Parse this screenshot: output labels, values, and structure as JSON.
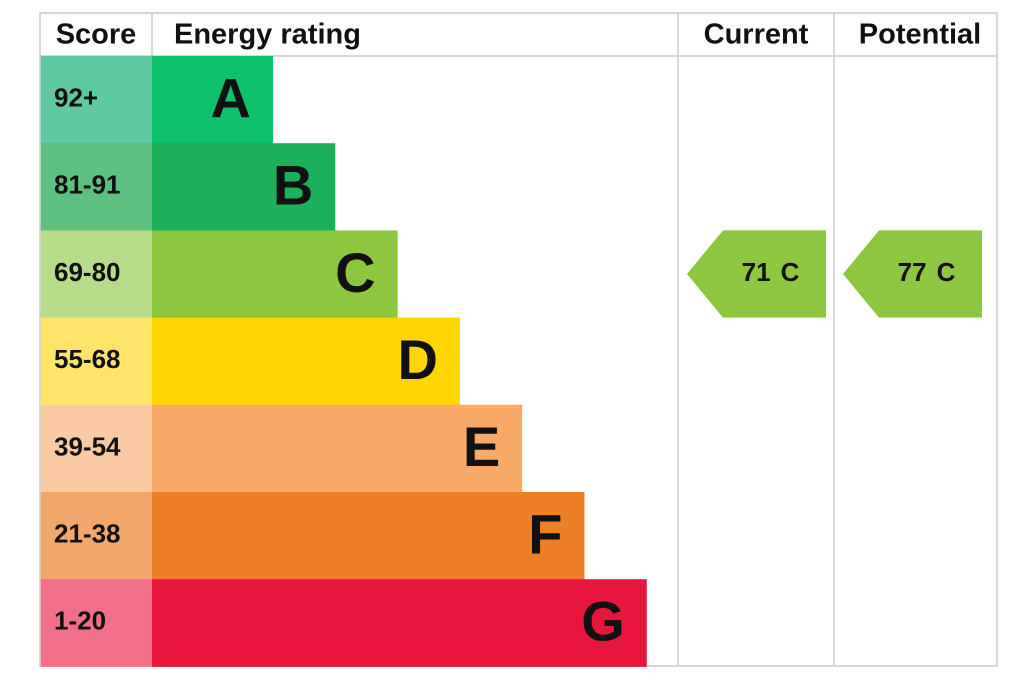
{
  "header": {
    "score": "Score",
    "energy_rating": "Energy rating",
    "current": "Current",
    "potential": "Potential"
  },
  "rows": [
    {
      "score": "92+",
      "band": "A",
      "color": "#0ec26b",
      "score_color": "#5ec9a0"
    },
    {
      "score": "81-91",
      "band": "B",
      "color": "#1bb05a",
      "score_color": "#5dbf80"
    },
    {
      "score": "69-80",
      "band": "C",
      "color": "#8dc63f",
      "score_color": "#b7dc89"
    },
    {
      "score": "55-68",
      "band": "D",
      "color": "#ffd500",
      "score_color": "#ffe46a"
    },
    {
      "score": "39-54",
      "band": "E",
      "color": "#f9aa68",
      "score_color": "#facaa3"
    },
    {
      "score": "21-38",
      "band": "F",
      "color": "#ed8027",
      "score_color": "#f2a86c"
    },
    {
      "score": "1-20",
      "band": "G",
      "color": "#e8163c",
      "score_color": "#f0708a"
    }
  ],
  "current": {
    "score": 71,
    "band": "C"
  },
  "potential": {
    "score": 77,
    "band": "C"
  }
}
